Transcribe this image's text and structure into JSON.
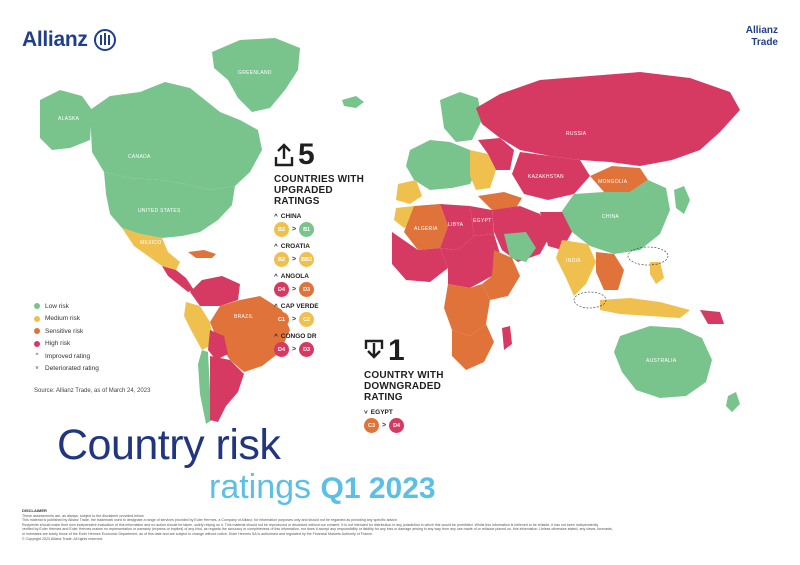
{
  "header": {
    "brand_left": "Allianz",
    "brand_right_line1": "Allianz",
    "brand_right_line2": "Trade"
  },
  "colors": {
    "low_risk": "#79c48d",
    "medium_risk": "#f0c04f",
    "sensitive_risk": "#e0733a",
    "high_risk": "#d63a62",
    "brand_blue": "#1f3f8a",
    "title_light_blue": "#5bc0e3"
  },
  "map": {
    "labels": {
      "greenland": "GREENLAND",
      "alaska": "ALASKA",
      "canada": "CANADA",
      "united_states": "UNITED STATES",
      "mexico": "MEXICO",
      "brazil": "BRAZIL",
      "russia": "RUSSIA",
      "kazakhstan": "KAZAKHSTAN",
      "mongolia": "MONGOLIA",
      "china": "CHINA",
      "australia": "AUSTRALIA",
      "india": "INDIA",
      "algeria": "ALGERIA",
      "libya": "LIBYA",
      "egypt": "EGYPT"
    }
  },
  "upgraded": {
    "count": "5",
    "title_lines": [
      "COUNTRIES WITH",
      "UPGRADED",
      "RATINGS"
    ],
    "countries": [
      {
        "name": "CHINA",
        "from": "B2",
        "to": "B1",
        "from_color": "#f0c04f",
        "to_color": "#79c48d"
      },
      {
        "name": "CROATIA",
        "from": "B2",
        "to": "BB2",
        "from_color": "#f0c04f",
        "to_color": "#f0c04f"
      },
      {
        "name": "ANGOLA",
        "from": "D4",
        "to": "D3",
        "from_color": "#d63a62",
        "to_color": "#e0733a"
      },
      {
        "name": "CAP VERDE",
        "from": "C1",
        "to": "C2",
        "from_color": "#e0733a",
        "to_color": "#f0c04f"
      },
      {
        "name": "CONGO DR",
        "from": "D4",
        "to": "D3",
        "from_color": "#d63a62",
        "to_color": "#d63a62"
      }
    ]
  },
  "downgraded": {
    "count": "1",
    "title_lines": [
      "COUNTRY WITH",
      "DOWNGRADED",
      "RATING"
    ],
    "countries": [
      {
        "name": "EGYPT",
        "from": "C3",
        "to": "D4",
        "from_color": "#e0733a",
        "to_color": "#d63a62"
      }
    ]
  },
  "legend": {
    "items": [
      {
        "label": "Low risk",
        "color": "#79c48d"
      },
      {
        "label": "Medium risk",
        "color": "#f0c04f"
      },
      {
        "label": "Sensitive risk",
        "color": "#e0733a"
      },
      {
        "label": "High risk",
        "color": "#d63a62"
      }
    ],
    "improved": "Improved rating",
    "deteriorated": "Deteriorated rating",
    "source": "Source: Allianz Trade, as of March 24, 2023"
  },
  "title": {
    "line1": "Country risk",
    "line2_word": "ratings",
    "line2_quarter": "Q1 2023"
  },
  "disclaimer": {
    "heading": "DISCLAIMER",
    "lines": [
      "These assessments are, as always, subject to the disclaimer provided below.",
      "This material is published by Allianz Trade, the trademark used to designate a range of services provided by Euler Hermes, a Company of Allianz, for information purposes only and should not be regarded as providing any specific advice.",
      "Recipients should make their own independent evaluation of this information and no action should be taken, solely relying on it. This material should not be reproduced or disclosed without our consent. It is not intended for distribution in any jurisdiction in which this would be prohibited. Whilst this information is believed to be reliable, it has not been independently",
      "verified by Euler Hermes and Euler Hermes makes no representation or warranty (express or implied) of any kind, as regards the accuracy or completeness of this information, nor does it accept any responsibility or liability for any loss or damage arising in any way from any use made of or reliance placed on, this information. Unless otherwise stated, any views, forecasts,",
      "or estimates are solely those of the Euler Hermes Economic Department, as of this date and are subject to change without notice. Euler Hermes SA is authorised and regulated by the Financial Markets Authority of France.",
      "© Copyright 2023 Allianz Trade. All rights reserved."
    ]
  }
}
